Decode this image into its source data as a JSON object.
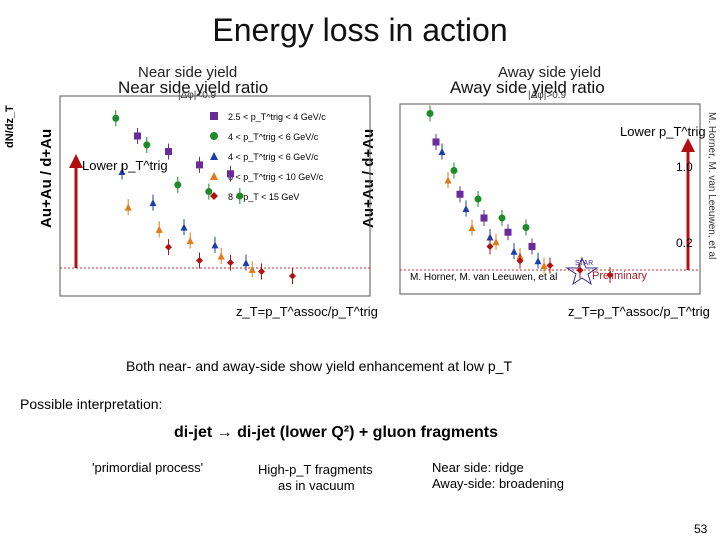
{
  "slide": {
    "title": "Energy loss in action",
    "page_number": "53"
  },
  "panels": {
    "near": {
      "small_title": "Near side yield",
      "big_title": "Near side yield ratio",
      "cut": "|Δφ|<0.9",
      "yaxis_small": "dN/dz_T",
      "yaxis_big": "Au+Au / d+Au",
      "arrow_label": "Lower p_T^trig",
      "xaxis": "z_T=p_T^assoc/p_T^trig"
    },
    "away": {
      "small_title": "Away side yield",
      "big_title": "Away side yield ratio",
      "cut": "|Δφ|>0.9",
      "yaxis_big": "Au+Au / d+Au",
      "arrow_label": "Lower p_T^trig",
      "xaxis": "z_T=p_T^assoc/p_T^trig",
      "label_1_0": "1.0",
      "label_0_2": "0.2",
      "credit": "M. Horner, M. van Leeuwen, et al",
      "preliminary": "Preliminary",
      "star_logo": "STAR",
      "side_credit": "M. Horner, M. van Leeuwen, et al"
    }
  },
  "legend": {
    "items": [
      {
        "label": "2.5 < p_T^trig < 4 GeV/c",
        "color": "#6a2a9a",
        "marker": "square"
      },
      {
        "label": "4 < p_T^trig < 6 GeV/c",
        "color": "#1f8a2a",
        "marker": "circle"
      },
      {
        "label": "4 < p_T^trig < 6 GeV/c",
        "color": "#1c3fa8",
        "marker": "triangle"
      },
      {
        "label": "6 < p_T^trig < 10 GeV/c",
        "color": "#e07a1a",
        "marker": "triangle"
      },
      {
        "label": "8 < p_T < 15 GeV",
        "color": "#b01010",
        "marker": "diamond"
      }
    ]
  },
  "text": {
    "summary": "Both near- and away-side show yield enhancement at low p_T",
    "interp_label": "Possible interpretation:",
    "formula": "di-jet → di-jet (lower Q²) + gluon fragments",
    "primordial": "'primordial process'",
    "highpt": "High-p_T fragments",
    "vacuum": "as in vacuum",
    "near_side": "Near side: ridge",
    "away_side": "Away-side: broadening"
  },
  "chart_data": [
    {
      "type": "scatter",
      "title": "Near side yield ratio",
      "xlabel": "z_T=p_T^assoc/p_T^trig",
      "ylabel": "Au+Au / d+Au",
      "xlim": [
        0,
        1
      ],
      "ylim": [
        0,
        9
      ],
      "series": [
        {
          "name": "2.5 < p_T^trig < 4 GeV/c",
          "x": [
            0.25,
            0.35,
            0.45,
            0.55
          ],
          "y": [
            7.2,
            6.5,
            5.9,
            5.5
          ]
        },
        {
          "name": "4 < p_T^trig < 6 GeV/c (circle)",
          "x": [
            0.18,
            0.28,
            0.38,
            0.48,
            0.58
          ],
          "y": [
            8.0,
            6.8,
            5.0,
            4.7,
            4.5
          ]
        },
        {
          "name": "4 < p_T^trig < 6 GeV/c (triangle)",
          "x": [
            0.2,
            0.3,
            0.4,
            0.5,
            0.6
          ],
          "y": [
            5.6,
            4.2,
            3.1,
            2.3,
            1.5
          ]
        },
        {
          "name": "6 < p_T^trig < 10 GeV/c",
          "x": [
            0.22,
            0.32,
            0.42,
            0.52,
            0.62
          ],
          "y": [
            4.0,
            3.0,
            2.5,
            1.8,
            1.2
          ]
        },
        {
          "name": "8 < p_T < 15 GeV",
          "x": [
            0.35,
            0.45,
            0.55,
            0.65,
            0.75
          ],
          "y": [
            2.2,
            1.6,
            1.5,
            1.1,
            0.9
          ]
        }
      ]
    },
    {
      "type": "scatter",
      "title": "Away side yield ratio",
      "xlabel": "z_T=p_T^assoc/p_T^trig",
      "ylabel": "Au+Au / d+Au",
      "xlim": [
        0,
        1
      ],
      "ylim": [
        0,
        2
      ],
      "series": [
        {
          "name": "2.5 < p_T^trig < 4 GeV/c",
          "x": [
            0.12,
            0.2,
            0.28,
            0.36,
            0.44
          ],
          "y": [
            1.6,
            1.05,
            0.8,
            0.65,
            0.5
          ]
        },
        {
          "name": "4 < p_T^trig < 6 GeV/c (circle)",
          "x": [
            0.1,
            0.18,
            0.26,
            0.34,
            0.42
          ],
          "y": [
            1.9,
            1.3,
            1.0,
            0.8,
            0.7
          ]
        },
        {
          "name": "4 < p_T^trig < 6 GeV/c (triangle)",
          "x": [
            0.14,
            0.22,
            0.3,
            0.38,
            0.46
          ],
          "y": [
            1.5,
            0.9,
            0.6,
            0.45,
            0.35
          ]
        },
        {
          "name": "6 < p_T^trig < 10 GeV/c",
          "x": [
            0.16,
            0.24,
            0.32,
            0.4,
            0.48
          ],
          "y": [
            1.2,
            0.7,
            0.55,
            0.4,
            0.3
          ]
        },
        {
          "name": "8 < p_T < 15 GeV",
          "x": [
            0.3,
            0.4,
            0.5,
            0.6,
            0.7
          ],
          "y": [
            0.5,
            0.35,
            0.3,
            0.25,
            0.2
          ]
        }
      ]
    }
  ]
}
